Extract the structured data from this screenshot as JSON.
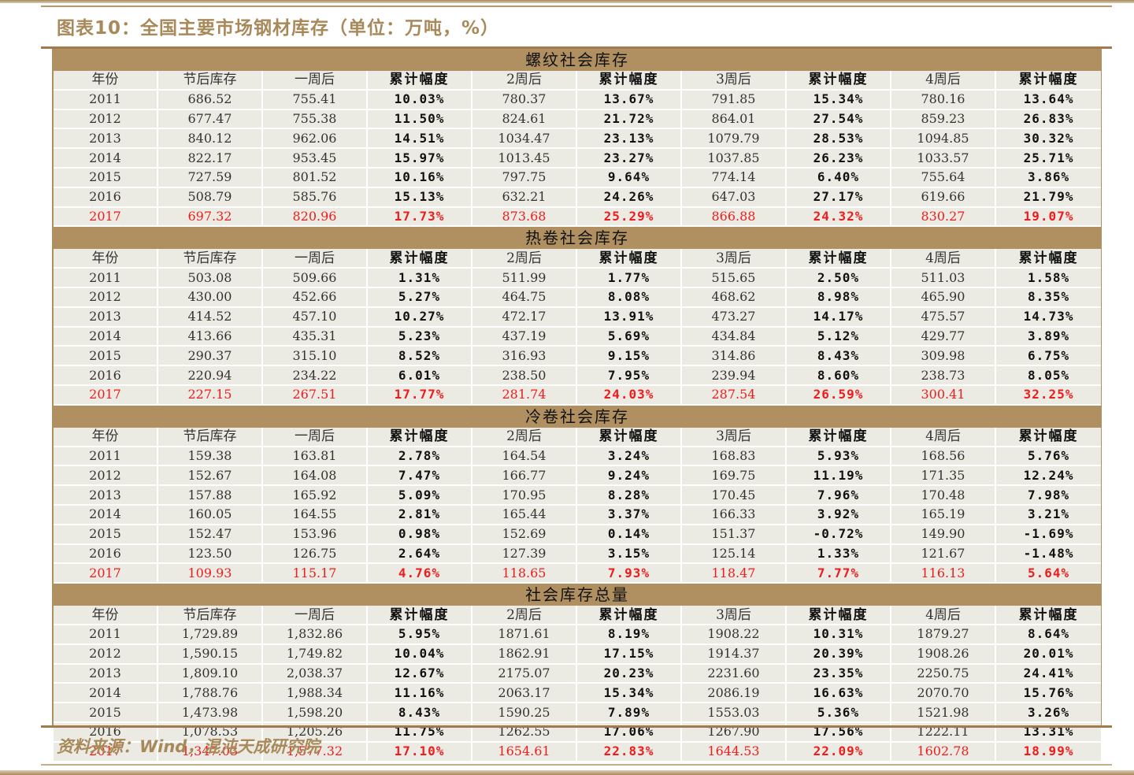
{
  "title": "图表10：全国主要市场钢材库存（单位：万吨，%）",
  "source": "资料来源：Wind，混沌天成研究院",
  "colors": {
    "header_bg": "#b08f61",
    "cell_bg": "#ecebe3",
    "title_text": "#a8895a",
    "highlight_text": "#ee1c1c"
  },
  "columns": [
    "年份",
    "节后库存",
    "一周后",
    "累计幅度",
    "2周后",
    "累计幅度",
    "3周后",
    "累计幅度",
    "4周后",
    "累计幅度"
  ],
  "sections": [
    {
      "name": "螺纹社会库存",
      "rows": [
        [
          "2011",
          "686.52",
          "755.41",
          "10.03%",
          "780.37",
          "13.67%",
          "791.85",
          "15.34%",
          "780.16",
          "13.64%"
        ],
        [
          "2012",
          "677.47",
          "755.38",
          "11.50%",
          "824.61",
          "21.72%",
          "864.01",
          "27.54%",
          "859.23",
          "26.83%"
        ],
        [
          "2013",
          "840.12",
          "962.06",
          "14.51%",
          "1034.47",
          "23.13%",
          "1079.79",
          "28.53%",
          "1094.85",
          "30.32%"
        ],
        [
          "2014",
          "822.17",
          "953.45",
          "15.97%",
          "1013.45",
          "23.27%",
          "1037.85",
          "26.23%",
          "1033.57",
          "25.71%"
        ],
        [
          "2015",
          "727.59",
          "801.52",
          "10.16%",
          "797.75",
          "9.64%",
          "774.14",
          "6.40%",
          "755.64",
          "3.86%"
        ],
        [
          "2016",
          "508.79",
          "585.76",
          "15.13%",
          "632.21",
          "24.26%",
          "647.03",
          "27.17%",
          "619.66",
          "21.79%"
        ],
        [
          "2017",
          "697.32",
          "820.96",
          "17.73%",
          "873.68",
          "25.29%",
          "866.88",
          "24.32%",
          "830.27",
          "19.07%"
        ]
      ]
    },
    {
      "name": "热卷社会库存",
      "rows": [
        [
          "2011",
          "503.08",
          "509.66",
          "1.31%",
          "511.99",
          "1.77%",
          "515.65",
          "2.50%",
          "511.03",
          "1.58%"
        ],
        [
          "2012",
          "430.00",
          "452.66",
          "5.27%",
          "464.75",
          "8.08%",
          "468.62",
          "8.98%",
          "465.90",
          "8.35%"
        ],
        [
          "2013",
          "414.52",
          "457.10",
          "10.27%",
          "472.17",
          "13.91%",
          "473.27",
          "14.17%",
          "475.57",
          "14.73%"
        ],
        [
          "2014",
          "413.66",
          "435.31",
          "5.23%",
          "437.19",
          "5.69%",
          "434.84",
          "5.12%",
          "429.77",
          "3.89%"
        ],
        [
          "2015",
          "290.37",
          "315.10",
          "8.52%",
          "316.93",
          "9.15%",
          "314.86",
          "8.43%",
          "309.98",
          "6.75%"
        ],
        [
          "2016",
          "220.94",
          "234.22",
          "6.01%",
          "238.50",
          "7.95%",
          "239.94",
          "8.60%",
          "238.73",
          "8.05%"
        ],
        [
          "2017",
          "227.15",
          "267.51",
          "17.77%",
          "281.74",
          "24.03%",
          "287.54",
          "26.59%",
          "300.41",
          "32.25%"
        ]
      ]
    },
    {
      "name": "冷卷社会库存",
      "rows": [
        [
          "2011",
          "159.38",
          "163.81",
          "2.78%",
          "164.54",
          "3.24%",
          "168.83",
          "5.93%",
          "168.56",
          "5.76%"
        ],
        [
          "2012",
          "152.67",
          "164.08",
          "7.47%",
          "166.77",
          "9.24%",
          "169.75",
          "11.19%",
          "171.35",
          "12.24%"
        ],
        [
          "2013",
          "157.88",
          "165.92",
          "5.09%",
          "170.95",
          "8.28%",
          "170.45",
          "7.96%",
          "170.48",
          "7.98%"
        ],
        [
          "2014",
          "160.05",
          "164.55",
          "2.81%",
          "165.44",
          "3.37%",
          "166.33",
          "3.92%",
          "165.19",
          "3.21%"
        ],
        [
          "2015",
          "152.47",
          "153.96",
          "0.98%",
          "152.69",
          "0.14%",
          "151.37",
          "-0.72%",
          "149.90",
          "-1.69%"
        ],
        [
          "2016",
          "123.50",
          "126.75",
          "2.64%",
          "127.39",
          "3.15%",
          "125.14",
          "1.33%",
          "121.67",
          "-1.48%"
        ],
        [
          "2017",
          "109.93",
          "115.17",
          "4.76%",
          "118.65",
          "7.93%",
          "118.47",
          "7.77%",
          "116.13",
          "5.64%"
        ]
      ]
    },
    {
      "name": "社会库存总量",
      "rows": [
        [
          "2011",
          "1,729.89",
          "1,832.86",
          "5.95%",
          "1871.61",
          "8.19%",
          "1908.22",
          "10.31%",
          "1879.27",
          "8.64%"
        ],
        [
          "2012",
          "1,590.15",
          "1,749.82",
          "10.04%",
          "1862.91",
          "17.15%",
          "1914.37",
          "20.39%",
          "1908.26",
          "20.01%"
        ],
        [
          "2013",
          "1,809.10",
          "2,038.37",
          "12.67%",
          "2175.07",
          "20.23%",
          "2231.60",
          "23.35%",
          "2250.75",
          "24.41%"
        ],
        [
          "2014",
          "1,788.76",
          "1,988.34",
          "11.16%",
          "2063.17",
          "15.34%",
          "2086.19",
          "16.63%",
          "2070.70",
          "15.76%"
        ],
        [
          "2015",
          "1,473.98",
          "1,598.20",
          "8.43%",
          "1590.25",
          "7.89%",
          "1553.03",
          "5.36%",
          "1521.98",
          "3.26%"
        ],
        [
          "2016",
          "1,078.53",
          "1,205.26",
          "11.75%",
          "1262.55",
          "17.06%",
          "1267.90",
          "17.56%",
          "1222.11",
          "13.31%"
        ],
        [
          "2017",
          "1,347.03",
          "1,577.32",
          "17.10%",
          "1654.61",
          "22.83%",
          "1644.53",
          "22.09%",
          "1602.78",
          "18.99%"
        ]
      ]
    }
  ],
  "highlight_year": "2017"
}
